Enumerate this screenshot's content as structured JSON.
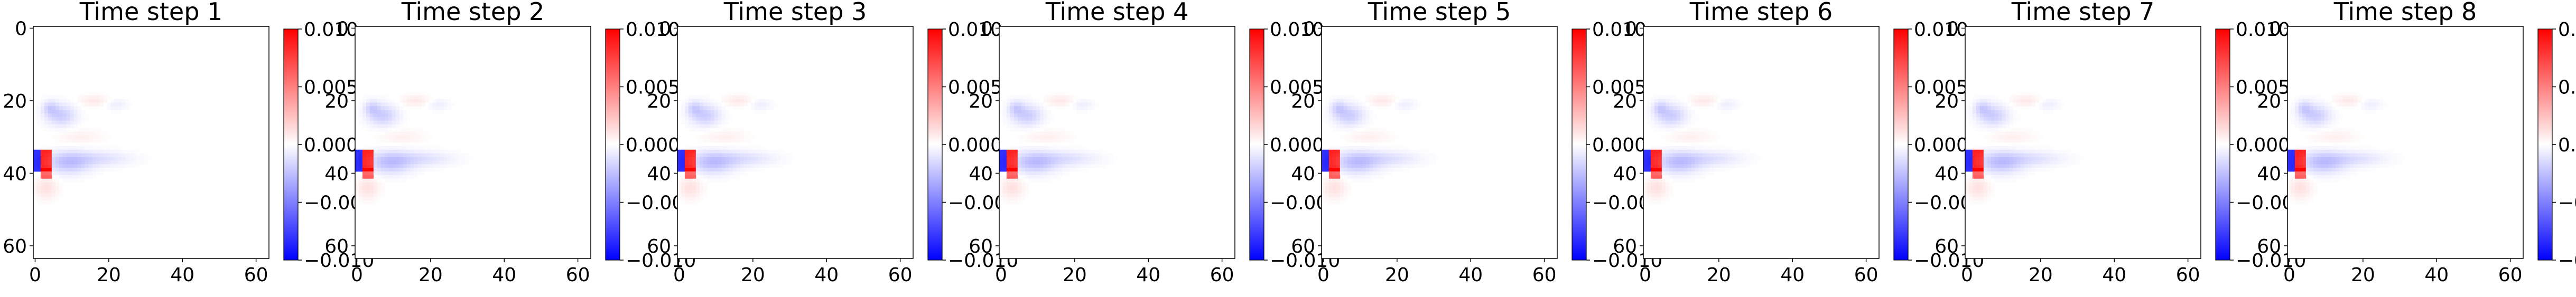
{
  "chart_data": {
    "type": "heatmap",
    "colormap": "bwr",
    "colors": {
      "negative": "#0000ff",
      "zero": "#ffffff",
      "positive": "#ff0000"
    },
    "grid": false,
    "grid_size": [
      64,
      64
    ],
    "xlim": [
      0,
      63
    ],
    "ylim": [
      63,
      0
    ],
    "x_ticks": [
      "0",
      "20",
      "40",
      "60"
    ],
    "y_ticks": [
      "0",
      "20",
      "40",
      "60"
    ],
    "colorbar": {
      "range": [
        -0.01,
        0.01
      ],
      "ticks": [
        "0.010",
        "0.005",
        "0.000",
        "−0.005",
        "−0.010"
      ]
    },
    "panels": [
      {
        "title": "Time step 1"
      },
      {
        "title": "Time step 2"
      },
      {
        "title": "Time step 3"
      },
      {
        "title": "Time step 4"
      },
      {
        "title": "Time step 5"
      },
      {
        "title": "Time step 6"
      },
      {
        "title": "Time step 7"
      },
      {
        "title": "Time step 8"
      }
    ],
    "features": [
      {
        "kind": "block",
        "x": [
          0,
          2
        ],
        "y": [
          34,
          40
        ],
        "value": -0.008
      },
      {
        "kind": "block",
        "x": [
          2,
          5
        ],
        "y": [
          34,
          40
        ],
        "value": 0.009
      },
      {
        "kind": "block",
        "x": [
          2,
          5
        ],
        "y": [
          39,
          42
        ],
        "value": 0.006
      },
      {
        "kind": "blob",
        "x": 9,
        "y": 37,
        "rx": 6,
        "ry": 3,
        "value": -0.0025
      },
      {
        "kind": "blob",
        "x": 18,
        "y": 36,
        "rx": 8,
        "ry": 2,
        "value": -0.0012
      },
      {
        "kind": "blob",
        "x": 7,
        "y": 24,
        "rx": 4,
        "ry": 3,
        "value": -0.002
      },
      {
        "kind": "blob",
        "x": 4,
        "y": 22,
        "rx": 2,
        "ry": 2,
        "value": -0.0015
      },
      {
        "kind": "blob",
        "x": 3,
        "y": 44,
        "rx": 3,
        "ry": 3,
        "value": 0.0012
      },
      {
        "kind": "blob",
        "x": 16,
        "y": 20,
        "rx": 4,
        "ry": 1.5,
        "value": 0.0009
      },
      {
        "kind": "blob",
        "x": 22,
        "y": 21,
        "rx": 3,
        "ry": 1.5,
        "value": -0.0007
      },
      {
        "kind": "blob",
        "x": 12,
        "y": 30,
        "rx": 6,
        "ry": 2,
        "value": 0.0006
      }
    ]
  }
}
